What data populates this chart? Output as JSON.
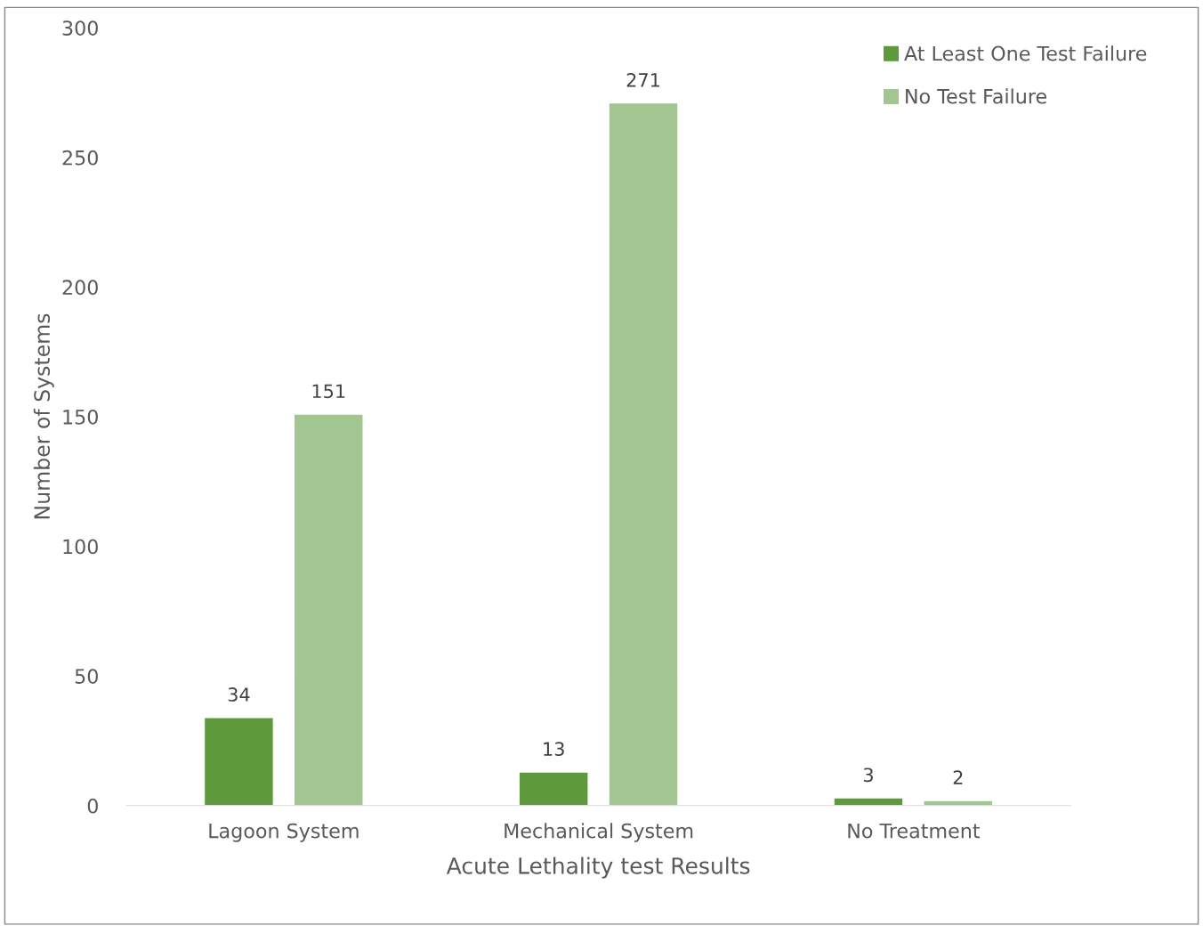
{
  "chart_data": {
    "type": "bar",
    "xlabel": "Acute Lethality test Results",
    "ylabel": "Number of Systems",
    "categories": [
      "Lagoon System",
      "Mechanical System",
      "No Treatment"
    ],
    "series": [
      {
        "name": "At Least One Test Failure",
        "color": "#5e9a3c",
        "values": [
          34,
          13,
          3
        ]
      },
      {
        "name": "No Test Failure",
        "color": "#a2c591",
        "values": [
          151,
          271,
          2
        ]
      }
    ],
    "ylim": [
      0,
      300
    ],
    "yticks": [
      0,
      50,
      100,
      150,
      200,
      250,
      300
    ],
    "grid": false,
    "legend": "top right",
    "data_labels": true
  }
}
